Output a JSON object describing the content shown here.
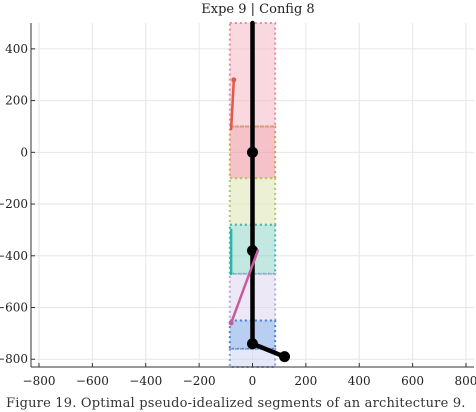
{
  "caption": "Figure 19. Optimal pseudo-idealized segments of an architecture 9.",
  "chart_data": {
    "type": "scatter",
    "title": "Expe 9 | Config 8",
    "xlabel": "",
    "ylabel": "",
    "xlim": [
      -830,
      830
    ],
    "ylim": [
      -830,
      500
    ],
    "x_ticks": [
      -800,
      -600,
      -400,
      -200,
      0,
      200,
      400,
      600,
      800
    ],
    "y_ticks": [
      -800,
      -600,
      -400,
      -200,
      0,
      200,
      400
    ],
    "x_tick_labels": [
      "−800",
      "−600",
      "−400",
      "−200",
      "0",
      "200",
      "400",
      "600",
      "800"
    ],
    "y_tick_labels": [
      "−800",
      "−600",
      "−400",
      "−200",
      "0",
      "200",
      "400"
    ],
    "grid": true,
    "boxes": [
      {
        "name": "segment-box-1",
        "x": [
          -85,
          85
        ],
        "y": [
          100,
          500
        ],
        "fill": "#f6b8c4",
        "stroke": "#e58a9e"
      },
      {
        "name": "segment-box-2",
        "x": [
          -85,
          85
        ],
        "y": [
          -100,
          100
        ],
        "fill": "#ef8f9e",
        "stroke": "#c9a24a"
      },
      {
        "name": "segment-box-3",
        "x": [
          -85,
          85
        ],
        "y": [
          -280,
          -100
        ],
        "fill": "#dce6b2",
        "stroke": "#b7c46a"
      },
      {
        "name": "segment-box-4",
        "x": [
          -85,
          85
        ],
        "y": [
          -470,
          -280
        ],
        "fill": "#8fd6c9",
        "stroke": "#3fb6a8"
      },
      {
        "name": "segment-box-5",
        "x": [
          -85,
          85
        ],
        "y": [
          -650,
          -470
        ],
        "fill": "#ddd5ee",
        "stroke": "#b8a8d8"
      },
      {
        "name": "segment-box-6",
        "x": [
          -85,
          85
        ],
        "y": [
          -760,
          -650
        ],
        "fill": "#7fa8e6",
        "stroke": "#4a7fd0"
      },
      {
        "name": "segment-box-7",
        "x": [
          -85,
          85
        ],
        "y": [
          -830,
          -760
        ],
        "fill": "#cfd6f2",
        "stroke": "#8c9ad8"
      }
    ],
    "series": [
      {
        "name": "",
        "color": "#000000",
        "width": 4.5,
        "points": [
          [
            0,
            500
          ],
          [
            0,
            0
          ],
          [
            0,
            -380
          ],
          [
            0,
            -740
          ],
          [
            120,
            -790
          ]
        ],
        "markers": [
          [
            0,
            0
          ],
          [
            0,
            -380
          ],
          [
            0,
            -740
          ],
          [
            120,
            -790
          ]
        ]
      },
      {
        "name": "",
        "color": "#e05a48",
        "width": 2.5,
        "points": [
          [
            -70,
            280
          ],
          [
            -80,
            90
          ]
        ],
        "markers": [
          [
            -70,
            280
          ]
        ]
      },
      {
        "name": "",
        "color": "#2bb5a8",
        "width": 2.5,
        "points": [
          [
            -80,
            -300
          ],
          [
            -80,
            -470
          ]
        ],
        "markers": []
      },
      {
        "name": "",
        "color": "#c95a9e",
        "width": 2.5,
        "points": [
          [
            -80,
            -660
          ],
          [
            20,
            -380
          ]
        ],
        "markers": [
          [
            -80,
            -660
          ]
        ]
      }
    ]
  }
}
